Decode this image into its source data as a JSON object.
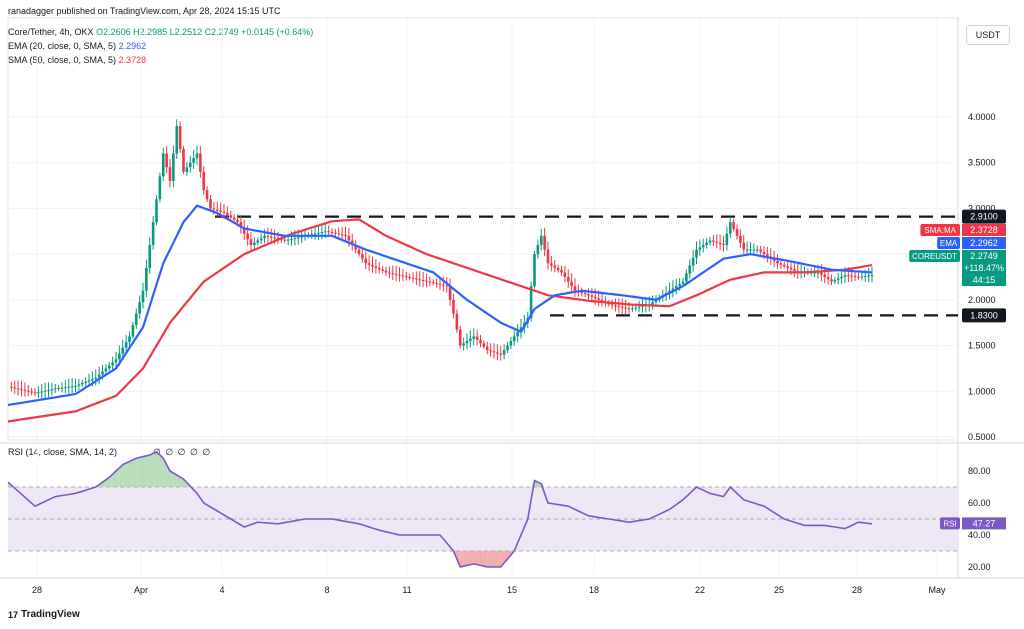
{
  "publisher": "ranadagger published on TradingView.com, Apr 28, 2024 15:15 UTC",
  "header": {
    "symbol": "Core/Tether, 4h, OKX",
    "ohlc": "O2.2606  H2.2985  L2.2512  C2.2749  +0.0145 (+0.64%)",
    "ema": "EMA (20, close, 0, SMA, 5)",
    "ema_value": "2.2962",
    "sma": "SMA (50, close, 0, SMA, 5)",
    "sma_value": "2.3728",
    "rsi": "RSI (14, close, SMA, 14, 2)",
    "rsi_values": "∅ ∅ ∅ ∅ ∅"
  },
  "currency": "USDT",
  "logo": "TradingView",
  "colors": {
    "up": "#089981",
    "down": "#f23645",
    "ema": "#2962ff",
    "sma": "#f23645",
    "rsi": "#7e57c2",
    "level": "#131722",
    "rsi_band": "#ede7f6"
  },
  "chart_data": {
    "type": "candlestick",
    "x_ticks": [
      "28",
      "Apr",
      "4",
      "8",
      "11",
      "15",
      "18",
      "22",
      "25",
      "28",
      "May"
    ],
    "y_ticks": [
      "4.0000",
      "3.5000",
      "3.0000",
      "2.5000",
      "2.0000",
      "1.5000",
      "1.0000",
      "0.5000"
    ],
    "ylim": [
      0.5,
      4.4
    ],
    "levels": [
      {
        "label": "2.9100",
        "value": 2.91
      },
      {
        "label": "1.8300",
        "value": 1.83
      }
    ],
    "price_tags": [
      {
        "label": "SMA:MA",
        "value": "2.3728"
      },
      {
        "label": "EMA",
        "value": "2.2962"
      },
      {
        "label": "COREUSDT",
        "value": "2.2749"
      },
      {
        "label": "",
        "value": "+118.47%"
      },
      {
        "label": "",
        "value": "44:15"
      }
    ],
    "close_anchors": [
      [
        0,
        1.05
      ],
      [
        8,
        0.98
      ],
      [
        14,
        1.03
      ],
      [
        20,
        1.06
      ],
      [
        26,
        1.15
      ],
      [
        32,
        1.35
      ],
      [
        36,
        1.6
      ],
      [
        40,
        2.1
      ],
      [
        42,
        2.6
      ],
      [
        44,
        3.1
      ],
      [
        46,
        3.6
      ],
      [
        48,
        3.3
      ],
      [
        50,
        3.9
      ],
      [
        52,
        3.4
      ],
      [
        54,
        3.5
      ],
      [
        56,
        3.6
      ],
      [
        58,
        3.2
      ],
      [
        60,
        3.0
      ],
      [
        64,
        2.95
      ],
      [
        68,
        2.85
      ],
      [
        72,
        2.6
      ],
      [
        76,
        2.7
      ],
      [
        82,
        2.65
      ],
      [
        88,
        2.7
      ],
      [
        94,
        2.75
      ],
      [
        100,
        2.7
      ],
      [
        106,
        2.4
      ],
      [
        112,
        2.3
      ],
      [
        118,
        2.25
      ],
      [
        124,
        2.2
      ],
      [
        130,
        2.15
      ],
      [
        132,
        1.85
      ],
      [
        134,
        1.5
      ],
      [
        138,
        1.6
      ],
      [
        142,
        1.45
      ],
      [
        146,
        1.4
      ],
      [
        150,
        1.6
      ],
      [
        154,
        1.8
      ],
      [
        156,
        2.5
      ],
      [
        158,
        2.7
      ],
      [
        160,
        2.4
      ],
      [
        164,
        2.3
      ],
      [
        168,
        2.1
      ],
      [
        172,
        2.05
      ],
      [
        178,
        1.95
      ],
      [
        184,
        1.9
      ],
      [
        190,
        1.95
      ],
      [
        196,
        2.1
      ],
      [
        200,
        2.2
      ],
      [
        204,
        2.55
      ],
      [
        208,
        2.65
      ],
      [
        212,
        2.6
      ],
      [
        214,
        2.85
      ],
      [
        218,
        2.55
      ],
      [
        222,
        2.55
      ],
      [
        228,
        2.4
      ],
      [
        234,
        2.3
      ],
      [
        240,
        2.3
      ],
      [
        244,
        2.2
      ],
      [
        248,
        2.27
      ],
      [
        252,
        2.25
      ],
      [
        256,
        2.27
      ]
    ],
    "ema20_anchors": [
      [
        0,
        0.85
      ],
      [
        20,
        0.97
      ],
      [
        32,
        1.25
      ],
      [
        40,
        1.7
      ],
      [
        46,
        2.4
      ],
      [
        52,
        2.85
      ],
      [
        56,
        3.03
      ],
      [
        62,
        2.95
      ],
      [
        70,
        2.78
      ],
      [
        82,
        2.7
      ],
      [
        96,
        2.7
      ],
      [
        106,
        2.55
      ],
      [
        118,
        2.4
      ],
      [
        126,
        2.3
      ],
      [
        136,
        2.0
      ],
      [
        146,
        1.75
      ],
      [
        152,
        1.65
      ],
      [
        156,
        1.9
      ],
      [
        162,
        2.05
      ],
      [
        170,
        2.1
      ],
      [
        182,
        2.05
      ],
      [
        192,
        2.0
      ],
      [
        200,
        2.15
      ],
      [
        212,
        2.45
      ],
      [
        220,
        2.5
      ],
      [
        232,
        2.42
      ],
      [
        244,
        2.33
      ],
      [
        256,
        2.3
      ]
    ],
    "sma50_anchors": [
      [
        0,
        0.67
      ],
      [
        20,
        0.78
      ],
      [
        32,
        0.95
      ],
      [
        40,
        1.25
      ],
      [
        48,
        1.75
      ],
      [
        58,
        2.2
      ],
      [
        70,
        2.5
      ],
      [
        84,
        2.72
      ],
      [
        96,
        2.86
      ],
      [
        104,
        2.88
      ],
      [
        112,
        2.7
      ],
      [
        124,
        2.5
      ],
      [
        136,
        2.35
      ],
      [
        148,
        2.2
      ],
      [
        160,
        2.05
      ],
      [
        172,
        1.99
      ],
      [
        184,
        1.95
      ],
      [
        196,
        1.93
      ],
      [
        204,
        2.05
      ],
      [
        214,
        2.22
      ],
      [
        224,
        2.3
      ],
      [
        236,
        2.3
      ],
      [
        248,
        2.33
      ],
      [
        256,
        2.38
      ]
    ],
    "rsi": {
      "y_ticks": [
        "80.00",
        "60.00",
        "40.00",
        "20.00"
      ],
      "ylim": [
        15,
        95
      ],
      "bands": [
        30,
        70
      ],
      "last_value": "47.27",
      "anchors": [
        [
          0,
          73
        ],
        [
          8,
          58
        ],
        [
          14,
          64
        ],
        [
          20,
          66
        ],
        [
          26,
          70
        ],
        [
          30,
          76
        ],
        [
          34,
          84
        ],
        [
          38,
          88
        ],
        [
          42,
          90
        ],
        [
          44,
          92
        ],
        [
          46,
          88
        ],
        [
          48,
          80
        ],
        [
          52,
          75
        ],
        [
          56,
          66
        ],
        [
          58,
          60
        ],
        [
          62,
          55
        ],
        [
          66,
          50
        ],
        [
          70,
          45
        ],
        [
          74,
          48
        ],
        [
          80,
          47
        ],
        [
          88,
          50
        ],
        [
          96,
          50
        ],
        [
          104,
          47
        ],
        [
          110,
          43
        ],
        [
          116,
          40
        ],
        [
          122,
          40
        ],
        [
          128,
          40
        ],
        [
          132,
          30
        ],
        [
          134,
          20
        ],
        [
          138,
          22
        ],
        [
          142,
          20
        ],
        [
          146,
          20
        ],
        [
          150,
          30
        ],
        [
          154,
          50
        ],
        [
          156,
          74
        ],
        [
          158,
          72
        ],
        [
          160,
          60
        ],
        [
          166,
          58
        ],
        [
          172,
          52
        ],
        [
          178,
          50
        ],
        [
          184,
          48
        ],
        [
          190,
          50
        ],
        [
          196,
          56
        ],
        [
          200,
          62
        ],
        [
          204,
          70
        ],
        [
          208,
          66
        ],
        [
          212,
          64
        ],
        [
          214,
          70
        ],
        [
          218,
          62
        ],
        [
          224,
          58
        ],
        [
          230,
          50
        ],
        [
          236,
          46
        ],
        [
          242,
          46
        ],
        [
          248,
          44
        ],
        [
          252,
          48
        ],
        [
          256,
          47
        ]
      ]
    }
  }
}
